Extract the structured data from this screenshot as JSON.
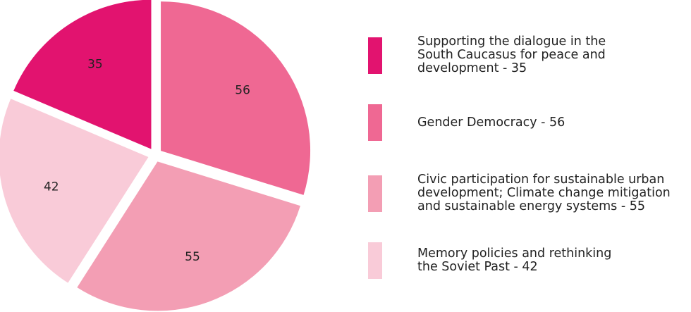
{
  "chart_data": {
    "type": "pie",
    "title": "",
    "start_angle_deg": 0,
    "slices": [
      {
        "value": 56,
        "label": "56",
        "color": "#ef6893"
      },
      {
        "value": 55,
        "label": "55",
        "color": "#f39eb4"
      },
      {
        "value": 42,
        "label": "42",
        "color": "#f9cbd8"
      },
      {
        "value": 35,
        "label": "35",
        "color": "#e2136f"
      }
    ],
    "legend": {
      "placement": "right",
      "entries": [
        {
          "text": "Supporting the dialogue in the\nSouth Caucasus for peace and\ndevelopment  - 35",
          "color": "#e2136f"
        },
        {
          "text": "Gender Democracy - 56",
          "color": "#ef6893"
        },
        {
          "text": "Civic participation for sustainable urban\ndevelopment; Climate change mitigation\nand sustainable energy systems - 55",
          "color": "#f39eb4"
        },
        {
          "text": "Memory policies and rethinking\nthe Soviet Past - 42",
          "color": "#f9cbd8"
        }
      ]
    }
  }
}
